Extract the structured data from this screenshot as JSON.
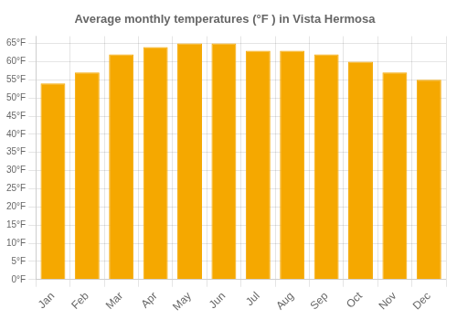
{
  "chart_data": {
    "type": "bar",
    "title": "Average monthly temperatures (°F ) in Vista Hermosa",
    "categories": [
      "Jan",
      "Feb",
      "Mar",
      "Apr",
      "May",
      "Jun",
      "Jul",
      "Aug",
      "Sep",
      "Oct",
      "Nov",
      "Dec"
    ],
    "values": [
      54,
      57,
      62,
      64,
      65,
      65,
      63,
      63,
      62,
      60,
      57,
      55
    ],
    "color": "#F5A800",
    "ylim": [
      0,
      67
    ],
    "yticks": [
      {
        "value": 0,
        "label": "0°F"
      },
      {
        "value": 5,
        "label": "5°F"
      },
      {
        "value": 10,
        "label": "10°F"
      },
      {
        "value": 15,
        "label": "15°F"
      },
      {
        "value": 20,
        "label": "20°F"
      },
      {
        "value": 25,
        "label": "25°F"
      },
      {
        "value": 30,
        "label": "30°F"
      },
      {
        "value": 35,
        "label": "35°F"
      },
      {
        "value": 40,
        "label": "40°F"
      },
      {
        "value": 45,
        "label": "45°F"
      },
      {
        "value": 50,
        "label": "50°F"
      },
      {
        "value": 55,
        "label": "55°F"
      },
      {
        "value": 60,
        "label": "60°F"
      },
      {
        "value": 65,
        "label": "65°F"
      }
    ],
    "grid": true
  }
}
